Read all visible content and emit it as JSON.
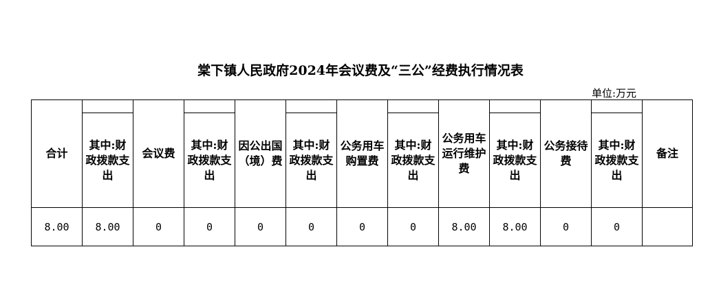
{
  "title": "棠下镇人民政府2024年会议费及“三公”经费执行情况表",
  "unit": "单位:万元",
  "headers": [
    "合计",
    "其中:财政拨款支出",
    "会议费",
    "其中:财政拨款支出",
    "因公出国（境）费",
    "其中:财政拨款支出",
    "公务用车购置费",
    "其中:财政拨款支出",
    "公务用车运行维护费",
    "其中:财政拨款支出",
    "公务接待费",
    "其中:财政拨款支出",
    "备注"
  ],
  "row": [
    "8.00",
    "8.00",
    "0",
    "0",
    "0",
    "0",
    "0",
    "0",
    "8.00",
    "8.00",
    "0",
    "0",
    ""
  ]
}
